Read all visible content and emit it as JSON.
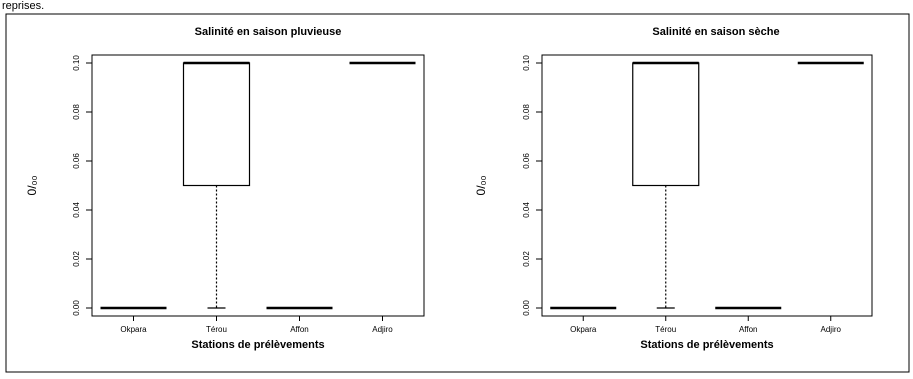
{
  "figure_header": "reprises.",
  "chart_data": [
    {
      "type": "boxplot",
      "title": "Salinité en saison pluvieuse",
      "xlabel": "Stations de prélèvements",
      "ylabel": "0/₀₀",
      "ylim": [
        0,
        0.1
      ],
      "yticks": [
        "0.00",
        "0.02",
        "0.04",
        "0.06",
        "0.08",
        "0.10"
      ],
      "categories": [
        "Okpara",
        "Térou",
        "Affon",
        "Adjiro"
      ],
      "boxes": [
        {
          "min": 0,
          "q1": 0,
          "median": 0,
          "q3": 0,
          "max": 0
        },
        {
          "min": 0,
          "q1": 0.05,
          "median": 0.1,
          "q3": 0.1,
          "max": 0.1
        },
        {
          "min": 0,
          "q1": 0,
          "median": 0,
          "q3": 0,
          "max": 0
        },
        {
          "min": 0.1,
          "q1": 0.1,
          "median": 0.1,
          "q3": 0.1,
          "max": 0.1
        }
      ]
    },
    {
      "type": "boxplot",
      "title": "Salinité en saison sèche",
      "xlabel": "Stations de prélèvements",
      "ylabel": "0/₀₀",
      "ylim": [
        0,
        0.1
      ],
      "yticks": [
        "0.00",
        "0.02",
        "0.04",
        "0.06",
        "0.08",
        "0.10"
      ],
      "categories": [
        "Okpara",
        "Térou",
        "Affon",
        "Adjiro"
      ],
      "boxes": [
        {
          "min": 0,
          "q1": 0,
          "median": 0,
          "q3": 0,
          "max": 0
        },
        {
          "min": 0,
          "q1": 0.05,
          "median": 0.1,
          "q3": 0.1,
          "max": 0.1
        },
        {
          "min": 0,
          "q1": 0,
          "median": 0,
          "q3": 0,
          "max": 0
        },
        {
          "min": 0.1,
          "q1": 0.1,
          "median": 0.1,
          "q3": 0.1,
          "max": 0.1
        }
      ]
    }
  ]
}
